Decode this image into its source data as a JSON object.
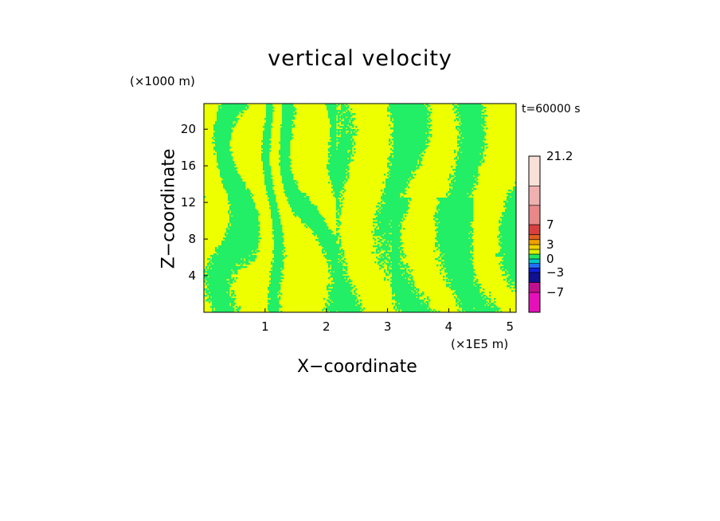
{
  "chart_data": {
    "type": "heatmap",
    "title": "vertical velocity",
    "xlabel": "X−coordinate",
    "ylabel": "Z−coordinate",
    "x_unit_label": "(×1E5 m)",
    "y_unit_label": "(×1000 m)",
    "time_label": "t=60000 s",
    "xlim": [
      0,
      5.1
    ],
    "ylim": [
      0,
      22.8
    ],
    "x_ticks": [
      "1",
      "2",
      "3",
      "4",
      "5"
    ],
    "y_ticks": [
      "4",
      "8",
      "12",
      "16",
      "20"
    ],
    "colorbar": {
      "tick_labels": [
        "21.2",
        "7",
        "3",
        "0",
        "−3",
        "−7"
      ],
      "levels": [
        -10,
        -7,
        -5,
        -3,
        -2,
        -1,
        0,
        1,
        2,
        3,
        4,
        5,
        7,
        11,
        15,
        21.2
      ],
      "colors": [
        "#e610b8",
        "#c01090",
        "#101090",
        "#1020d8",
        "#2070ff",
        "#00c8c8",
        "#20e860",
        "#d8f000",
        "#f0d000",
        "#f0a000",
        "#e06020",
        "#d84040",
        "#e88888",
        "#f0b0b0",
        "#f8e0d8"
      ]
    },
    "dominant_colors": {
      "positive": "#eeff00",
      "negative": "#22ee66"
    }
  }
}
